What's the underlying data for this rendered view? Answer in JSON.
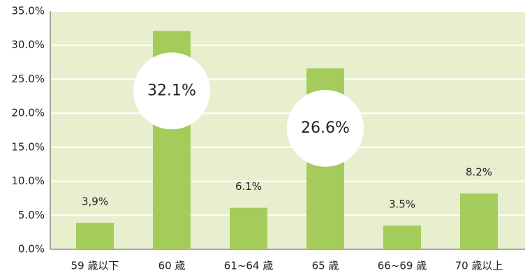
{
  "chart_data": {
    "type": "bar",
    "categories": [
      "59 歳以下",
      "60 歳",
      "61~64 歳",
      "65 歳",
      "66~69 歳",
      "70 歳以上"
    ],
    "values": [
      3.9,
      32.1,
      6.1,
      26.6,
      3.5,
      8.2
    ],
    "value_labels": [
      "3,9%",
      "32.1%",
      "6.1%",
      "26.6%",
      "3.5%",
      "8.2%"
    ],
    "color": "#a5cc5b",
    "ylim": [
      0,
      35
    ],
    "yticks": [
      {
        "value": 0,
        "label": "0.0%"
      },
      {
        "value": 5,
        "label": "5.0%"
      },
      {
        "value": 10,
        "label": "10.0%"
      },
      {
        "value": 15,
        "label": "15.0%"
      },
      {
        "value": 20,
        "label": "20.0%"
      },
      {
        "value": 25,
        "label": "25.0%"
      },
      {
        "value": 30,
        "label": "30.0%"
      },
      {
        "value": 35,
        "label": "35.0%"
      }
    ],
    "grid": true
  }
}
